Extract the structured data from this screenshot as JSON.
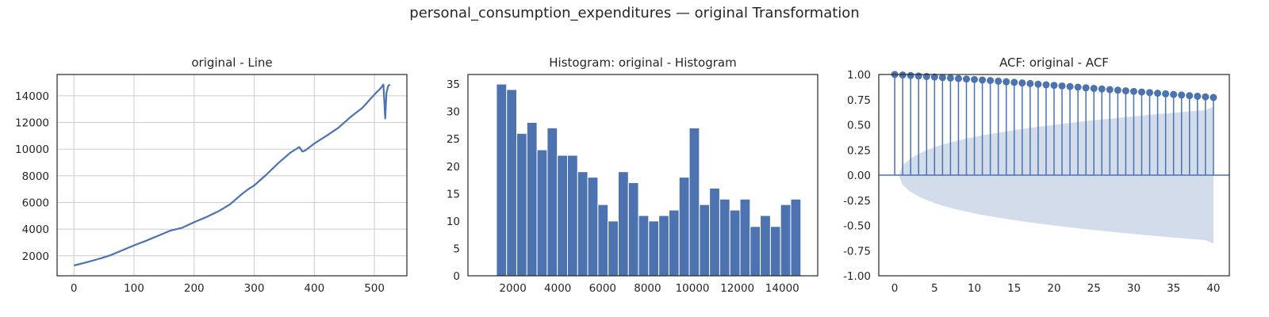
{
  "figure": {
    "title": "personal_consumption_expenditures — original Transformation"
  },
  "colors": {
    "series": "#4c72b0",
    "band": "#4c72b0",
    "grid": "#cccccc",
    "frame": "#262626"
  },
  "chart_data": [
    {
      "type": "line",
      "title": "original - Line",
      "xlabel": "",
      "ylabel": "",
      "grid": true,
      "xlim": [
        -28,
        554
      ],
      "ylim": [
        500,
        15600
      ],
      "xticks": [
        0,
        100,
        200,
        300,
        400,
        500
      ],
      "yticks": [
        2000,
        4000,
        6000,
        8000,
        10000,
        12000,
        14000
      ],
      "series": [
        {
          "x": [
            0,
            20,
            40,
            60,
            80,
            100,
            120,
            140,
            160,
            180,
            200,
            220,
            240,
            260,
            280,
            290,
            300,
            320,
            340,
            360,
            375,
            380,
            385,
            400,
            420,
            440,
            460,
            480,
            500,
            510,
            515,
            518,
            520,
            523,
            526
          ],
          "values": [
            1270,
            1500,
            1750,
            2030,
            2400,
            2780,
            3130,
            3500,
            3880,
            4100,
            4520,
            4900,
            5330,
            5870,
            6650,
            7000,
            7280,
            8080,
            8950,
            9730,
            10160,
            9820,
            9900,
            10420,
            11000,
            11600,
            12400,
            13100,
            14100,
            14550,
            14850,
            12300,
            14200,
            14750,
            14850
          ]
        }
      ]
    },
    {
      "type": "bar",
      "title": "Histogram: original - Histogram",
      "xlabel": "",
      "ylabel": "",
      "grid": false,
      "xlim": [
        0,
        15580
      ],
      "ylim": [
        0,
        36.75
      ],
      "xticks": [
        2000,
        4000,
        6000,
        8000,
        10000,
        12000,
        14000
      ],
      "yticks": [
        0,
        5,
        10,
        15,
        20,
        25,
        30,
        35
      ],
      "bin_start": 1270,
      "bin_width": 452,
      "values": [
        35,
        34,
        26,
        28,
        23,
        27,
        22,
        22,
        19,
        18,
        13,
        10,
        19,
        17,
        11,
        10,
        11,
        12,
        18,
        27,
        13,
        16,
        14,
        12,
        14,
        9,
        11,
        9,
        13,
        14
      ]
    },
    {
      "type": "acf",
      "title": "ACF: original - ACF",
      "xlabel": "",
      "ylabel": "",
      "grid": false,
      "xlim": [
        -2,
        42
      ],
      "ylim": [
        -1.0,
        1.0
      ],
      "xticks": [
        0,
        5,
        10,
        15,
        20,
        25,
        30,
        35,
        40
      ],
      "yticks": [
        -1.0,
        -0.75,
        -0.5,
        -0.25,
        0.0,
        0.25,
        0.5,
        0.75,
        1.0
      ],
      "lags": [
        0,
        1,
        2,
        3,
        4,
        5,
        6,
        7,
        8,
        9,
        10,
        11,
        12,
        13,
        14,
        15,
        16,
        17,
        18,
        19,
        20,
        21,
        22,
        23,
        24,
        25,
        26,
        27,
        28,
        29,
        30,
        31,
        32,
        33,
        34,
        35,
        36,
        37,
        38,
        39,
        40
      ],
      "values": [
        1.0,
        0.995,
        0.99,
        0.985,
        0.98,
        0.975,
        0.97,
        0.965,
        0.96,
        0.955,
        0.95,
        0.945,
        0.94,
        0.934,
        0.928,
        0.922,
        0.916,
        0.91,
        0.904,
        0.898,
        0.892,
        0.886,
        0.88,
        0.874,
        0.868,
        0.862,
        0.856,
        0.85,
        0.844,
        0.838,
        0.832,
        0.826,
        0.82,
        0.814,
        0.808,
        0.802,
        0.796,
        0.79,
        0.784,
        0.778,
        0.772
      ],
      "conf_upper": [
        0.0,
        0.098,
        0.166,
        0.212,
        0.248,
        0.278,
        0.303,
        0.325,
        0.345,
        0.363,
        0.379,
        0.395,
        0.409,
        0.422,
        0.435,
        0.447,
        0.459,
        0.47,
        0.48,
        0.49,
        0.5,
        0.51,
        0.519,
        0.528,
        0.537,
        0.545,
        0.553,
        0.561,
        0.569,
        0.577,
        0.584,
        0.592,
        0.599,
        0.606,
        0.613,
        0.62,
        0.627,
        0.633,
        0.64,
        0.646,
        0.68
      ]
    }
  ]
}
